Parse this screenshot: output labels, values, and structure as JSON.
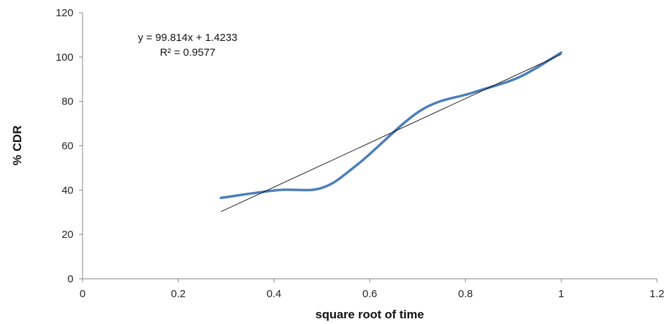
{
  "chart_data": {
    "type": "line",
    "xlabel": "square root of time",
    "ylabel": "% CDR",
    "xlim": [
      0,
      1.2
    ],
    "ylim": [
      0,
      120
    ],
    "x_ticks": [
      "0",
      "0.2",
      "0.4",
      "0.6",
      "0.8",
      "1",
      "1.2"
    ],
    "y_ticks": [
      "0",
      "20",
      "40",
      "60",
      "80",
      "100",
      "120"
    ],
    "x_tick_values": [
      0,
      0.2,
      0.4,
      0.6,
      0.8,
      1.0,
      1.2
    ],
    "y_tick_values": [
      0,
      20,
      40,
      60,
      80,
      100,
      120
    ],
    "grid": false,
    "series": [
      {
        "x": [
          0.289,
          0.408,
          0.5,
          0.577,
          0.707,
          0.816,
          0.913,
          1.0
        ],
        "y": [
          36.5,
          40,
          41,
          52,
          76,
          84,
          91,
          102
        ],
        "color": "#4a7ebb",
        "style": "smooth"
      }
    ],
    "trendline": {
      "slope": 99.814,
      "intercept": 1.4233,
      "x_range": [
        0.289,
        1.0
      ],
      "color": "#000000"
    },
    "annotations": {
      "equation": "y = 99.814x + 1.4233",
      "r_squared": "R² = 0.9577"
    }
  }
}
